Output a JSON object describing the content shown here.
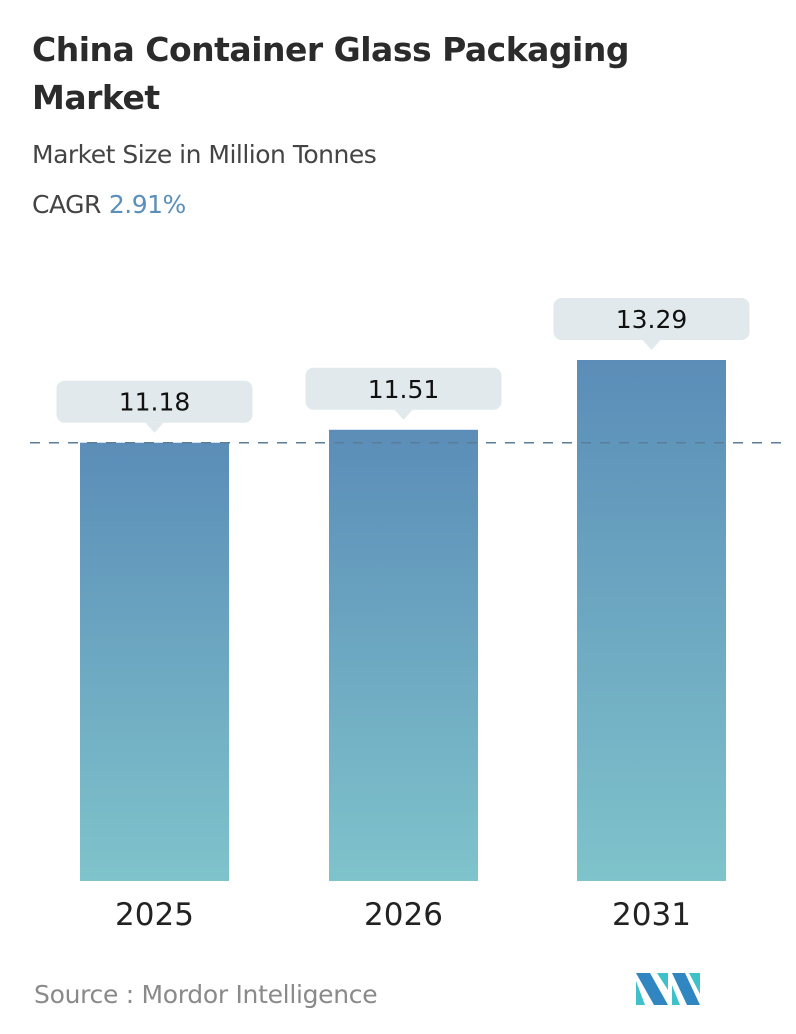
{
  "title": "China Container Glass Packaging Market",
  "subtitle": "Market Size in Million Tonnes",
  "cagr_label": "CAGR",
  "cagr_value": "2.91%",
  "source": "Source :  Mordor Intelligence",
  "colors": {
    "bar_top": "#5b8db8",
    "bar_bottom": "#7fc3cb",
    "label_bg": "#e1e9ec",
    "accent": "#5b8fb9"
  },
  "chart_data": {
    "type": "bar",
    "categories": [
      "2025",
      "2026",
      "2031"
    ],
    "values": [
      11.18,
      11.51,
      13.29
    ],
    "data_labels": [
      "11.18",
      "11.51",
      "13.29"
    ],
    "ylim": [
      0,
      13.29
    ],
    "reference_line": 11.18,
    "grid": false
  }
}
